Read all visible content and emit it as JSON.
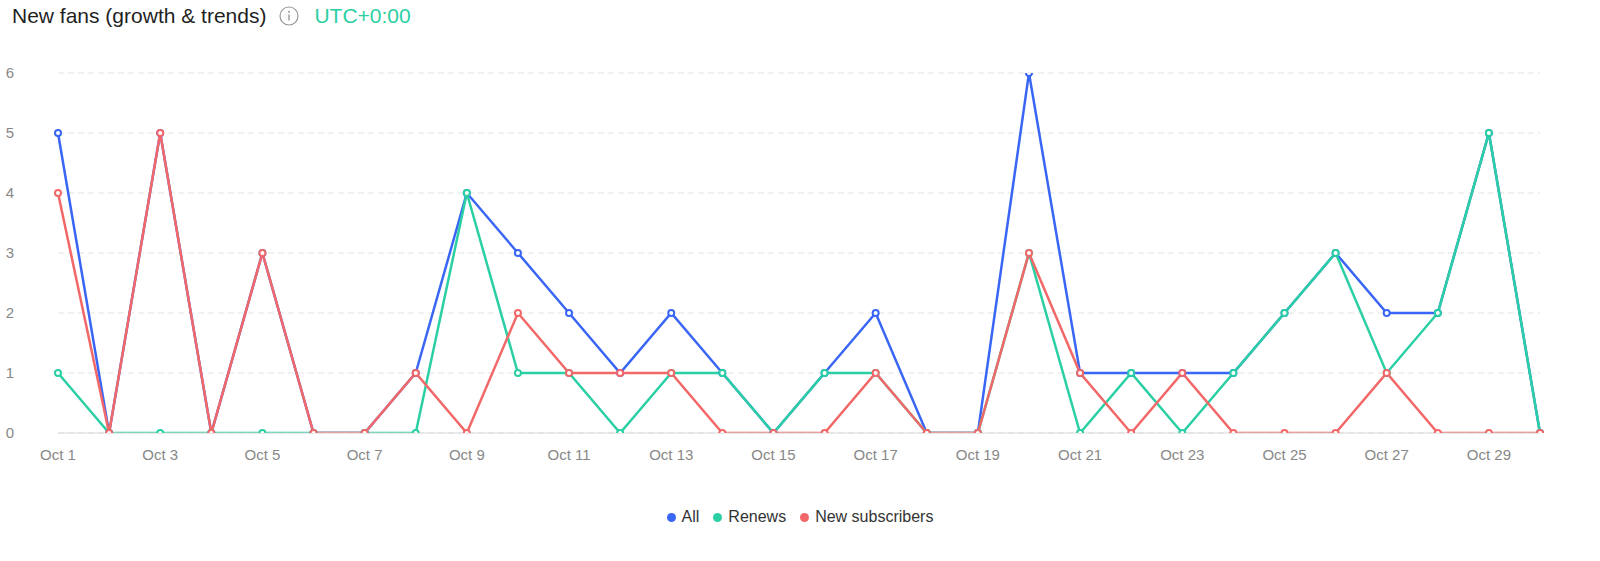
{
  "chart_data": {
    "type": "line",
    "title": "New fans (growth & trends)",
    "subtitle": "UTC+0:00",
    "categories": [
      "Oct 1",
      null,
      "Oct 3",
      null,
      "Oct 5",
      null,
      "Oct 7",
      null,
      "Oct 9",
      null,
      "Oct 11",
      null,
      "Oct 13",
      null,
      "Oct 15",
      null,
      "Oct 17",
      null,
      "Oct 19",
      null,
      "Oct 21",
      null,
      "Oct 23",
      null,
      "Oct 25",
      null,
      "Oct 27",
      null,
      "Oct 29",
      null
    ],
    "series": [
      {
        "name": "All",
        "color": "#3a66f5",
        "values": [
          5,
          0,
          5,
          0,
          3,
          0,
          0,
          1,
          4,
          3,
          2,
          1,
          2,
          1,
          0,
          1,
          2,
          0,
          0,
          6,
          1,
          1,
          1,
          1,
          2,
          3,
          2,
          2,
          5,
          0
        ]
      },
      {
        "name": "Renews",
        "color": "#2bcfa4",
        "values": [
          1,
          0,
          0,
          0,
          0,
          0,
          0,
          0,
          4,
          1,
          1,
          0,
          1,
          1,
          0,
          1,
          1,
          0,
          0,
          3,
          0,
          1,
          0,
          1,
          2,
          3,
          1,
          2,
          5,
          0
        ]
      },
      {
        "name": "New subscribers",
        "color": "#f26868",
        "values": [
          4,
          0,
          5,
          0,
          3,
          0,
          0,
          1,
          0,
          2,
          1,
          1,
          1,
          0,
          0,
          0,
          1,
          0,
          0,
          3,
          1,
          0,
          1,
          0,
          0,
          0,
          1,
          0,
          0,
          0
        ]
      }
    ],
    "ylim": [
      0,
      6
    ],
    "yticks": [
      0,
      1,
      2,
      3,
      4,
      5,
      6
    ],
    "grid": true,
    "legend": "bottom",
    "marker": "circle"
  }
}
